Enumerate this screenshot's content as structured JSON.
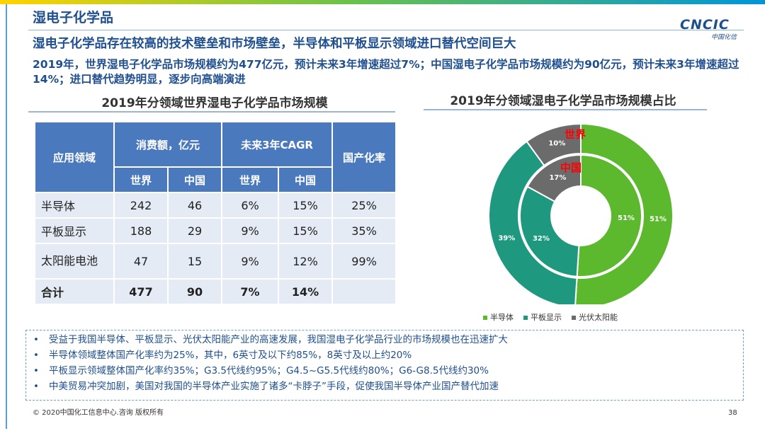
{
  "page": {
    "title": "湿电子化学品",
    "headline": "湿电子化学品存在较高的技术壁垒和市场壁垒，半导体和平板显示领域进口替代空间巨大",
    "summary": "2019年，世界湿电子化学品市场规模约为477亿元，预计未来3年增速超过7%；中国湿电子化学品市场规模约为90亿元，预计未来3年增速超过14%；进口替代趋势明显，逐步向高端演进"
  },
  "logo": {
    "main": "CNCIC",
    "sub": "中国化信"
  },
  "table_section": {
    "title": "2019年分领域世界湿电子化学品市场规模",
    "headers": {
      "field": "应用领域",
      "consumption": "消费额，亿元",
      "cagr": "未来3年CAGR",
      "localization": "国产化率",
      "world": "世界",
      "china": "中国"
    },
    "rows": [
      {
        "field": "半导体",
        "cons_world": "242",
        "cons_china": "46",
        "cagr_world": "6%",
        "cagr_china": "15%",
        "local": "25%"
      },
      {
        "field": "平板显示",
        "cons_world": "188",
        "cons_china": "29",
        "cagr_world": "9%",
        "cagr_china": "15%",
        "local": "35%"
      },
      {
        "field": "太阳能电池",
        "cons_world": "47",
        "cons_china": "15",
        "cagr_world": "9%",
        "cagr_china": "12%",
        "local": "99%"
      },
      {
        "field": "合计",
        "cons_world": "477",
        "cons_china": "90",
        "cagr_world": "7%",
        "cagr_china": "14%",
        "local": ""
      }
    ]
  },
  "chart_section": {
    "title": "2019年分领域湿电子化学品市场规模占比"
  },
  "chart_data": {
    "type": "pie",
    "title": "2019年分领域湿电子化学品市场规模占比",
    "categories": [
      "半导体",
      "平板显示",
      "光伏太阳能"
    ],
    "series": [
      {
        "name": "世界",
        "values": [
          51,
          39,
          10
        ],
        "labels": [
          "51%",
          "39%",
          "10%"
        ]
      },
      {
        "name": "中国",
        "values": [
          51,
          32,
          17
        ],
        "labels": [
          "51%",
          "32%",
          "17%"
        ]
      }
    ],
    "colors": [
      "#5cb82c",
      "#1e9980",
      "#6b6b6b"
    ],
    "annotation_colors": {
      "outer": "#ff0000",
      "inner": "#ff0000"
    },
    "legend": [
      "半导体",
      "平板显示",
      "光伏太阳能"
    ]
  },
  "bullets": [
    "受益于我国半导体、平板显示、光伏太阳能产业的高速发展，我国湿电子化学品行业的市场规模也在迅速扩大",
    "半导体领域整体国产化率约为25%，其中，6英寸及以下约85%，8英寸及以上约20%",
    "平板显示领域整体国产化率约35%；G3.5代线约95%；G4.5~G5.5代线约80%；G6-G8.5代线约30%",
    "中美贸易冲突加剧，美国对我国的半导体产业实施了诸多“卡脖子”手段，促使我国半导体产业国产替代加速"
  ],
  "bullet_marker": "•",
  "footer": {
    "copyright": "© 2020中国化工信息中心.咨询 版权所有",
    "page_number": "38"
  }
}
